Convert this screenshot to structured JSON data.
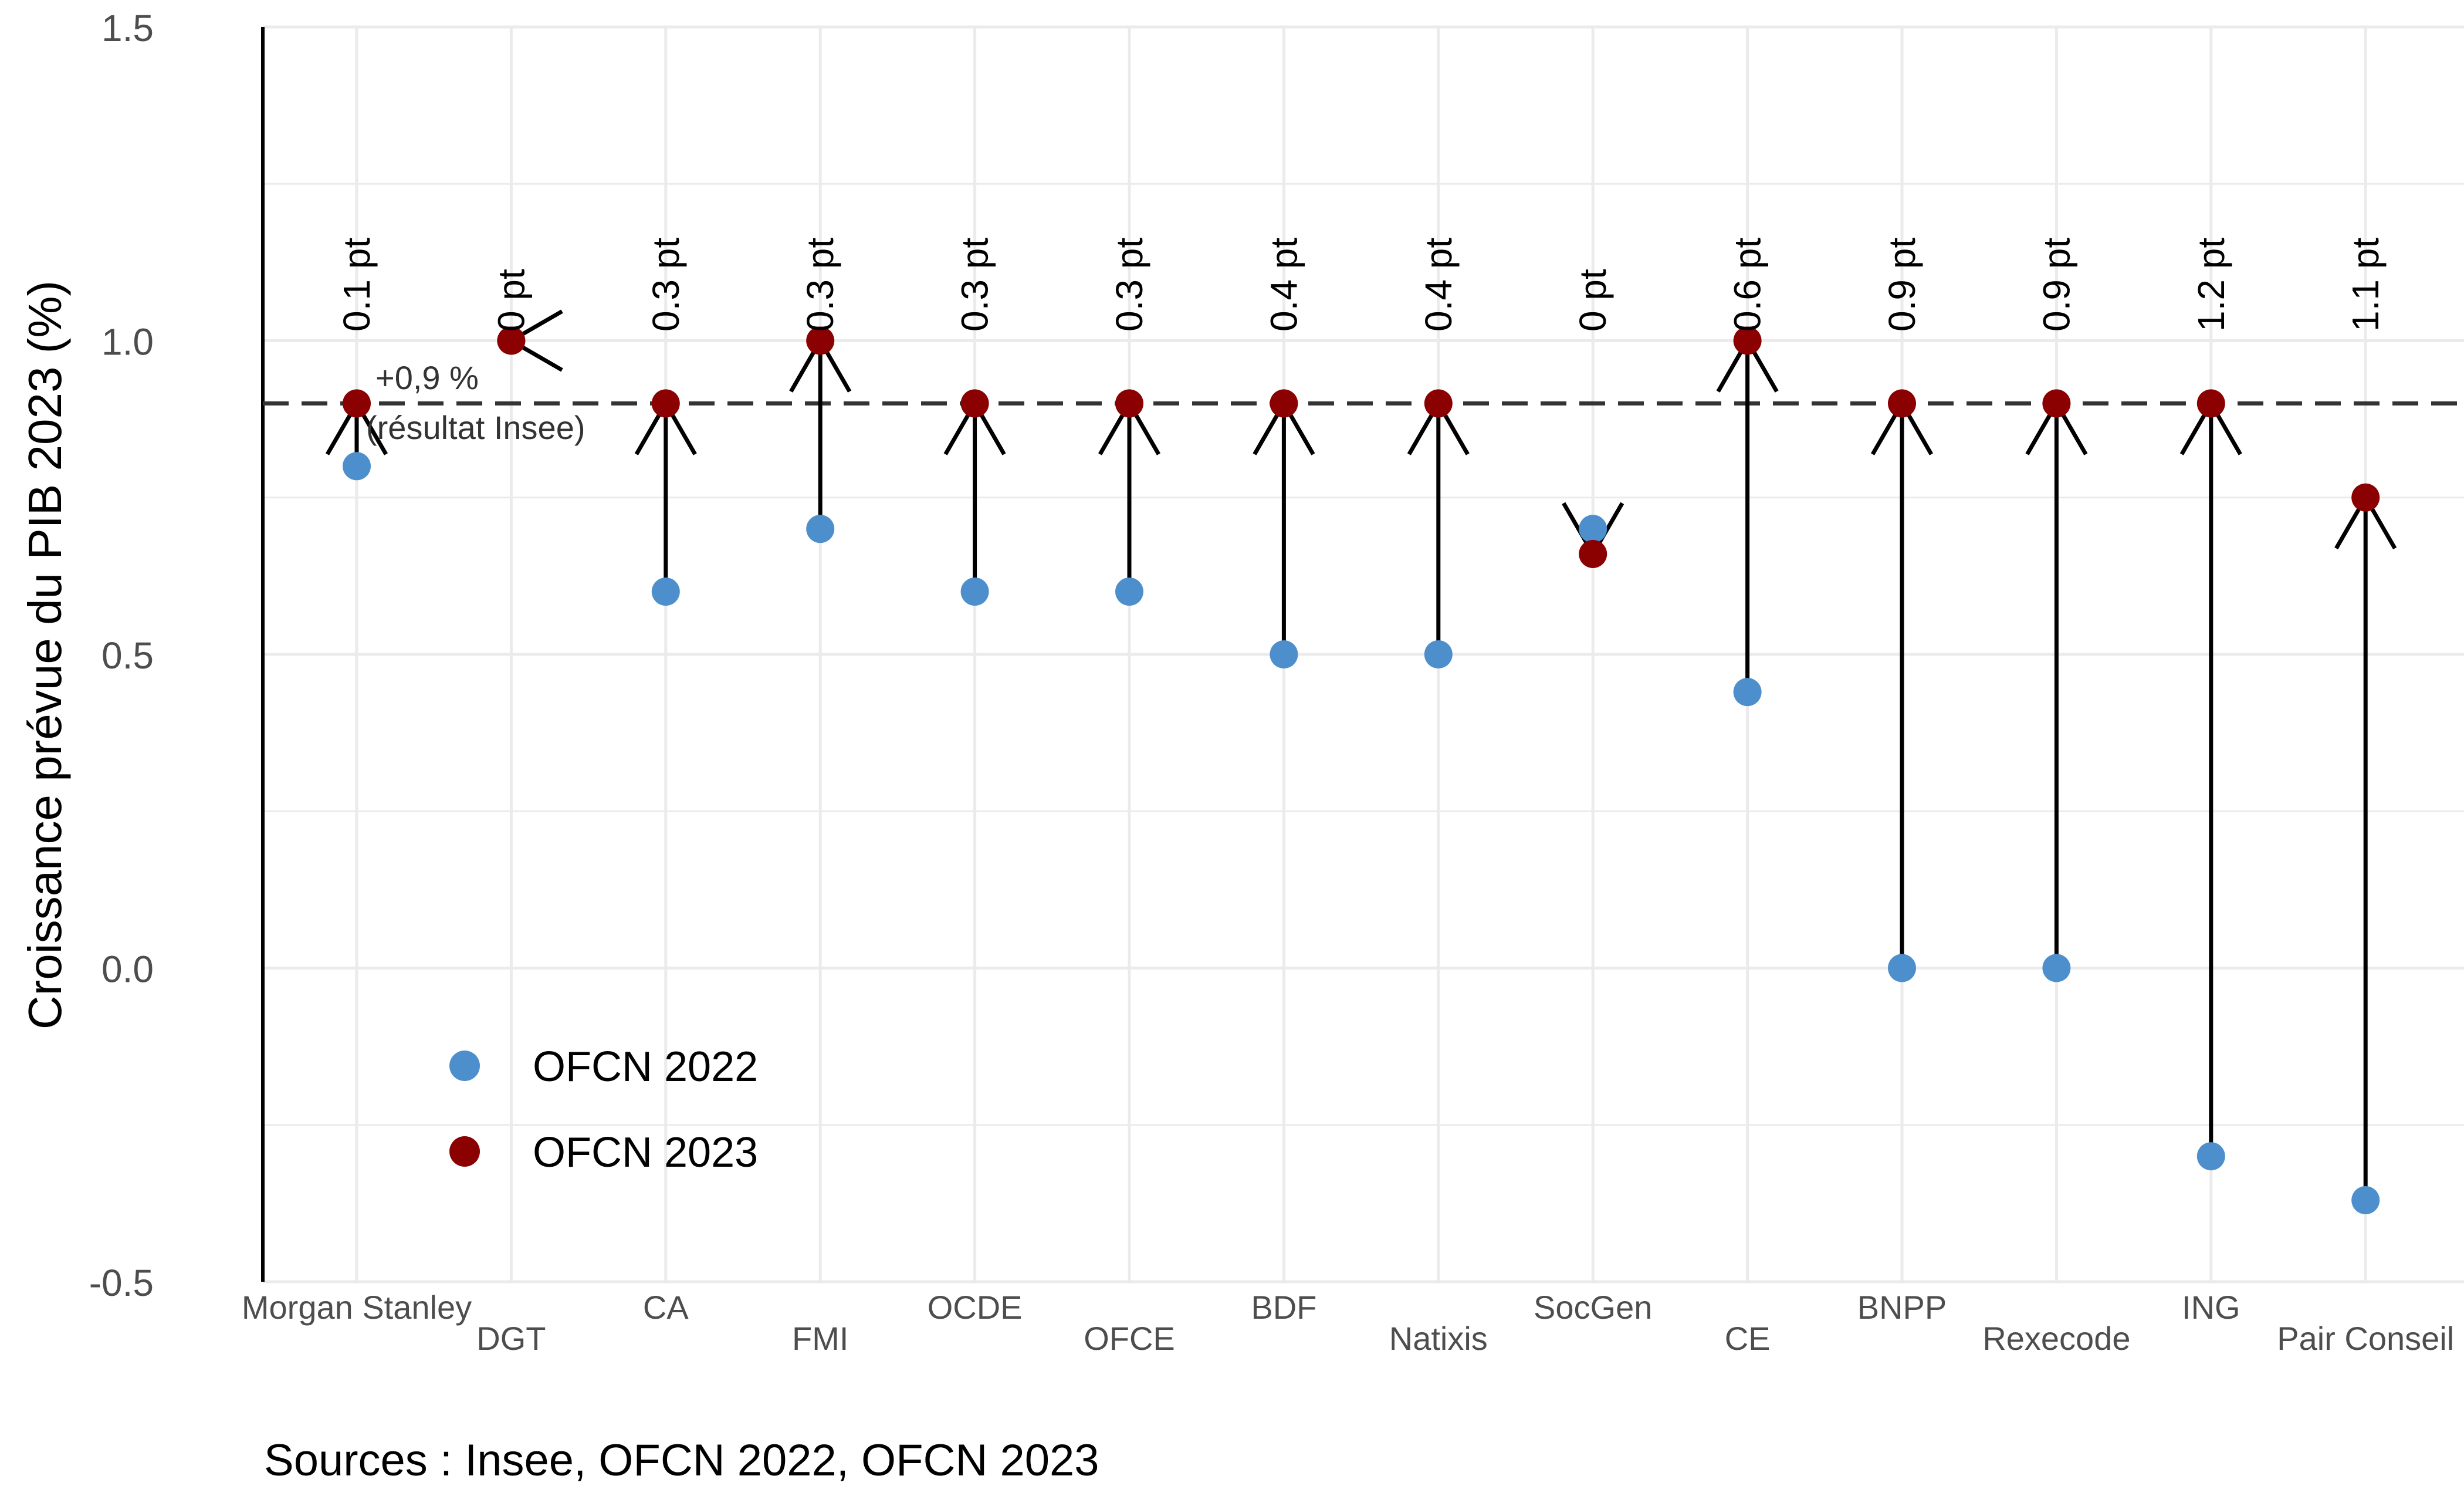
{
  "chart_data": {
    "type": "scatter",
    "ylabel": "Croissance prévue du PIB 2023 (%)",
    "ylim": [
      -0.5,
      1.5
    ],
    "yticks": [
      -0.5,
      0.0,
      0.5,
      1.0,
      1.5
    ],
    "ytick_labels": [
      "-0.5",
      "0.0",
      "0.5",
      "1.0",
      "1.5"
    ],
    "grid": true,
    "legend_position": "bottom-left",
    "categories": [
      "Morgan Stanley",
      "DGT",
      "CA",
      "FMI",
      "OCDE",
      "OFCE",
      "BDF",
      "Natixis",
      "SocGen",
      "CE",
      "BNPP",
      "Rexecode",
      "ING",
      "Pair Conseil"
    ],
    "series": [
      {
        "name": "OFCN 2022",
        "color": "#4d8fcc",
        "values": [
          0.8,
          1.0,
          0.6,
          0.7,
          0.6,
          0.6,
          0.5,
          0.5,
          0.7,
          0.44,
          0.0,
          0.0,
          -0.3,
          -0.37
        ]
      },
      {
        "name": "OFCN 2023",
        "color": "#8b0000",
        "values": [
          0.9,
          1.0,
          0.9,
          1.0,
          0.9,
          0.9,
          0.9,
          0.9,
          0.66,
          1.0,
          0.9,
          0.9,
          0.9,
          0.75
        ]
      }
    ],
    "delta_labels": [
      "0.1 pt",
      "0 pt",
      "0.3 pt",
      "0.3 pt",
      "0.3 pt",
      "0.3 pt",
      "0.4 pt",
      "0.4 pt",
      "0 pt",
      "0.6 pt",
      "0.9 pt",
      "0.9 pt",
      "1.2 pt",
      "1.1 pt"
    ],
    "reference_line": {
      "value": 0.9,
      "label_line1": "+0,9 %",
      "label_line2": "(résultat Insee)"
    },
    "caption": "Sources : Insee, OFCN 2022, OFCN 2023"
  }
}
